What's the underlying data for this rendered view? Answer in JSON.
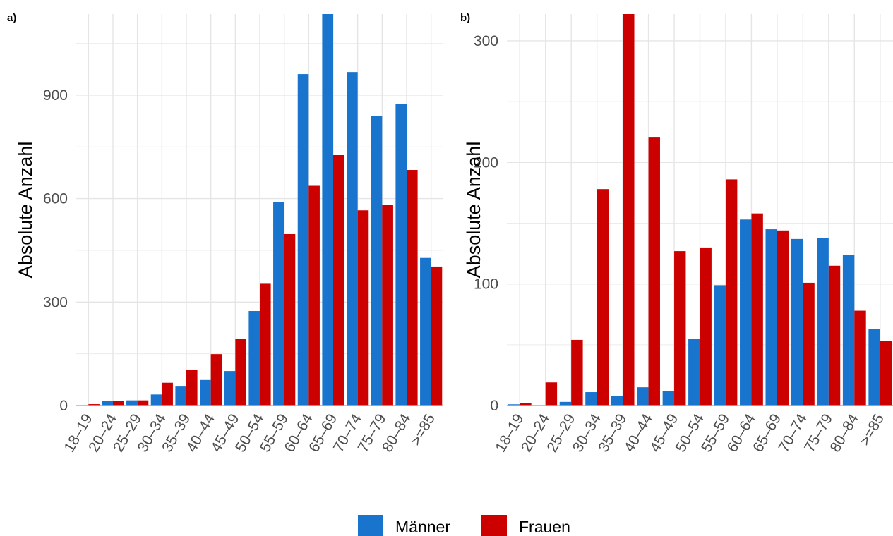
{
  "colors": {
    "maenner": "#1874cd",
    "frauen": "#cd0000"
  },
  "legend": {
    "items": [
      {
        "label": "Männer"
      },
      {
        "label": "Frauen"
      }
    ]
  },
  "chart_data": [
    {
      "type": "bar",
      "panel_label": "a)",
      "ylabel": "Absolute Anzahl",
      "ylim": [
        0,
        1135
      ],
      "yticks": [
        0,
        300,
        600,
        900
      ],
      "categories": [
        "18–19",
        "20–24",
        "25–29",
        "30–34",
        "35–39",
        "40–44",
        "45–49",
        "50–54",
        "55–59",
        "60–64",
        "65–69",
        "70–74",
        "75–79",
        "80–84",
        ">=85"
      ],
      "series": [
        {
          "name": "Männer",
          "values": [
            0,
            14,
            15,
            32,
            55,
            74,
            100,
            274,
            591,
            961,
            1135,
            967,
            839,
            874,
            428
          ]
        },
        {
          "name": "Frauen",
          "values": [
            4,
            13,
            15,
            66,
            103,
            149,
            194,
            355,
            497,
            637,
            726,
            566,
            581,
            683,
            403
          ]
        }
      ]
    },
    {
      "type": "bar",
      "panel_label": "b)",
      "ylabel": "Absolute Anzahl",
      "ylim": [
        0,
        322
      ],
      "yticks": [
        0,
        100,
        200,
        300
      ],
      "categories": [
        "18–19",
        "20–24",
        "25–29",
        "30–34",
        "35–39",
        "40–44",
        "45–49",
        "50–54",
        "55–59",
        "60–64",
        "65–69",
        "70–74",
        "75–79",
        "80–84",
        ">=85"
      ],
      "series": [
        {
          "name": "Männer",
          "values": [
            1,
            0,
            3,
            11,
            8,
            15,
            12,
            55,
            99,
            153,
            145,
            137,
            138,
            124,
            63
          ]
        },
        {
          "name": "Frauen",
          "values": [
            2,
            19,
            54,
            178,
            322,
            221,
            127,
            130,
            186,
            158,
            144,
            101,
            115,
            78,
            53
          ]
        }
      ]
    }
  ]
}
